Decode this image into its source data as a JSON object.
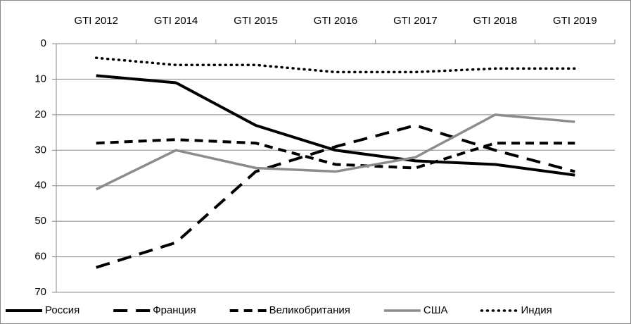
{
  "chart_data": {
    "type": "line",
    "categories": [
      "GTI 2012",
      "GTI 2014",
      "GTI 2015",
      "GTI 2016",
      "GTI 2017",
      "GTI 2018",
      "GTI 2019"
    ],
    "series": [
      {
        "name": "Россия",
        "color": "#000000",
        "line_style": "solid",
        "values": [
          9,
          11,
          23,
          30,
          33,
          34,
          37
        ]
      },
      {
        "name": "Франция",
        "color": "#000000",
        "line_style": "long-dash",
        "values": [
          63,
          56,
          36,
          29,
          23,
          30,
          36
        ]
      },
      {
        "name": "Великобритания",
        "color": "#000000",
        "line_style": "dash",
        "values": [
          28,
          27,
          28,
          34,
          35,
          28,
          28
        ]
      },
      {
        "name": "США",
        "color": "#8c8c8c",
        "line_style": "solid",
        "values": [
          41,
          30,
          35,
          36,
          32,
          20,
          22
        ]
      },
      {
        "name": "Индия",
        "color": "#000000",
        "line_style": "dotted",
        "values": [
          4,
          6,
          6,
          8,
          8,
          7,
          7
        ]
      }
    ],
    "ylim": [
      0,
      70
    ],
    "yticks": [
      0,
      10,
      20,
      30,
      40,
      50,
      60,
      70
    ],
    "y_inverted": true,
    "grid": true,
    "legend": "bottom"
  }
}
